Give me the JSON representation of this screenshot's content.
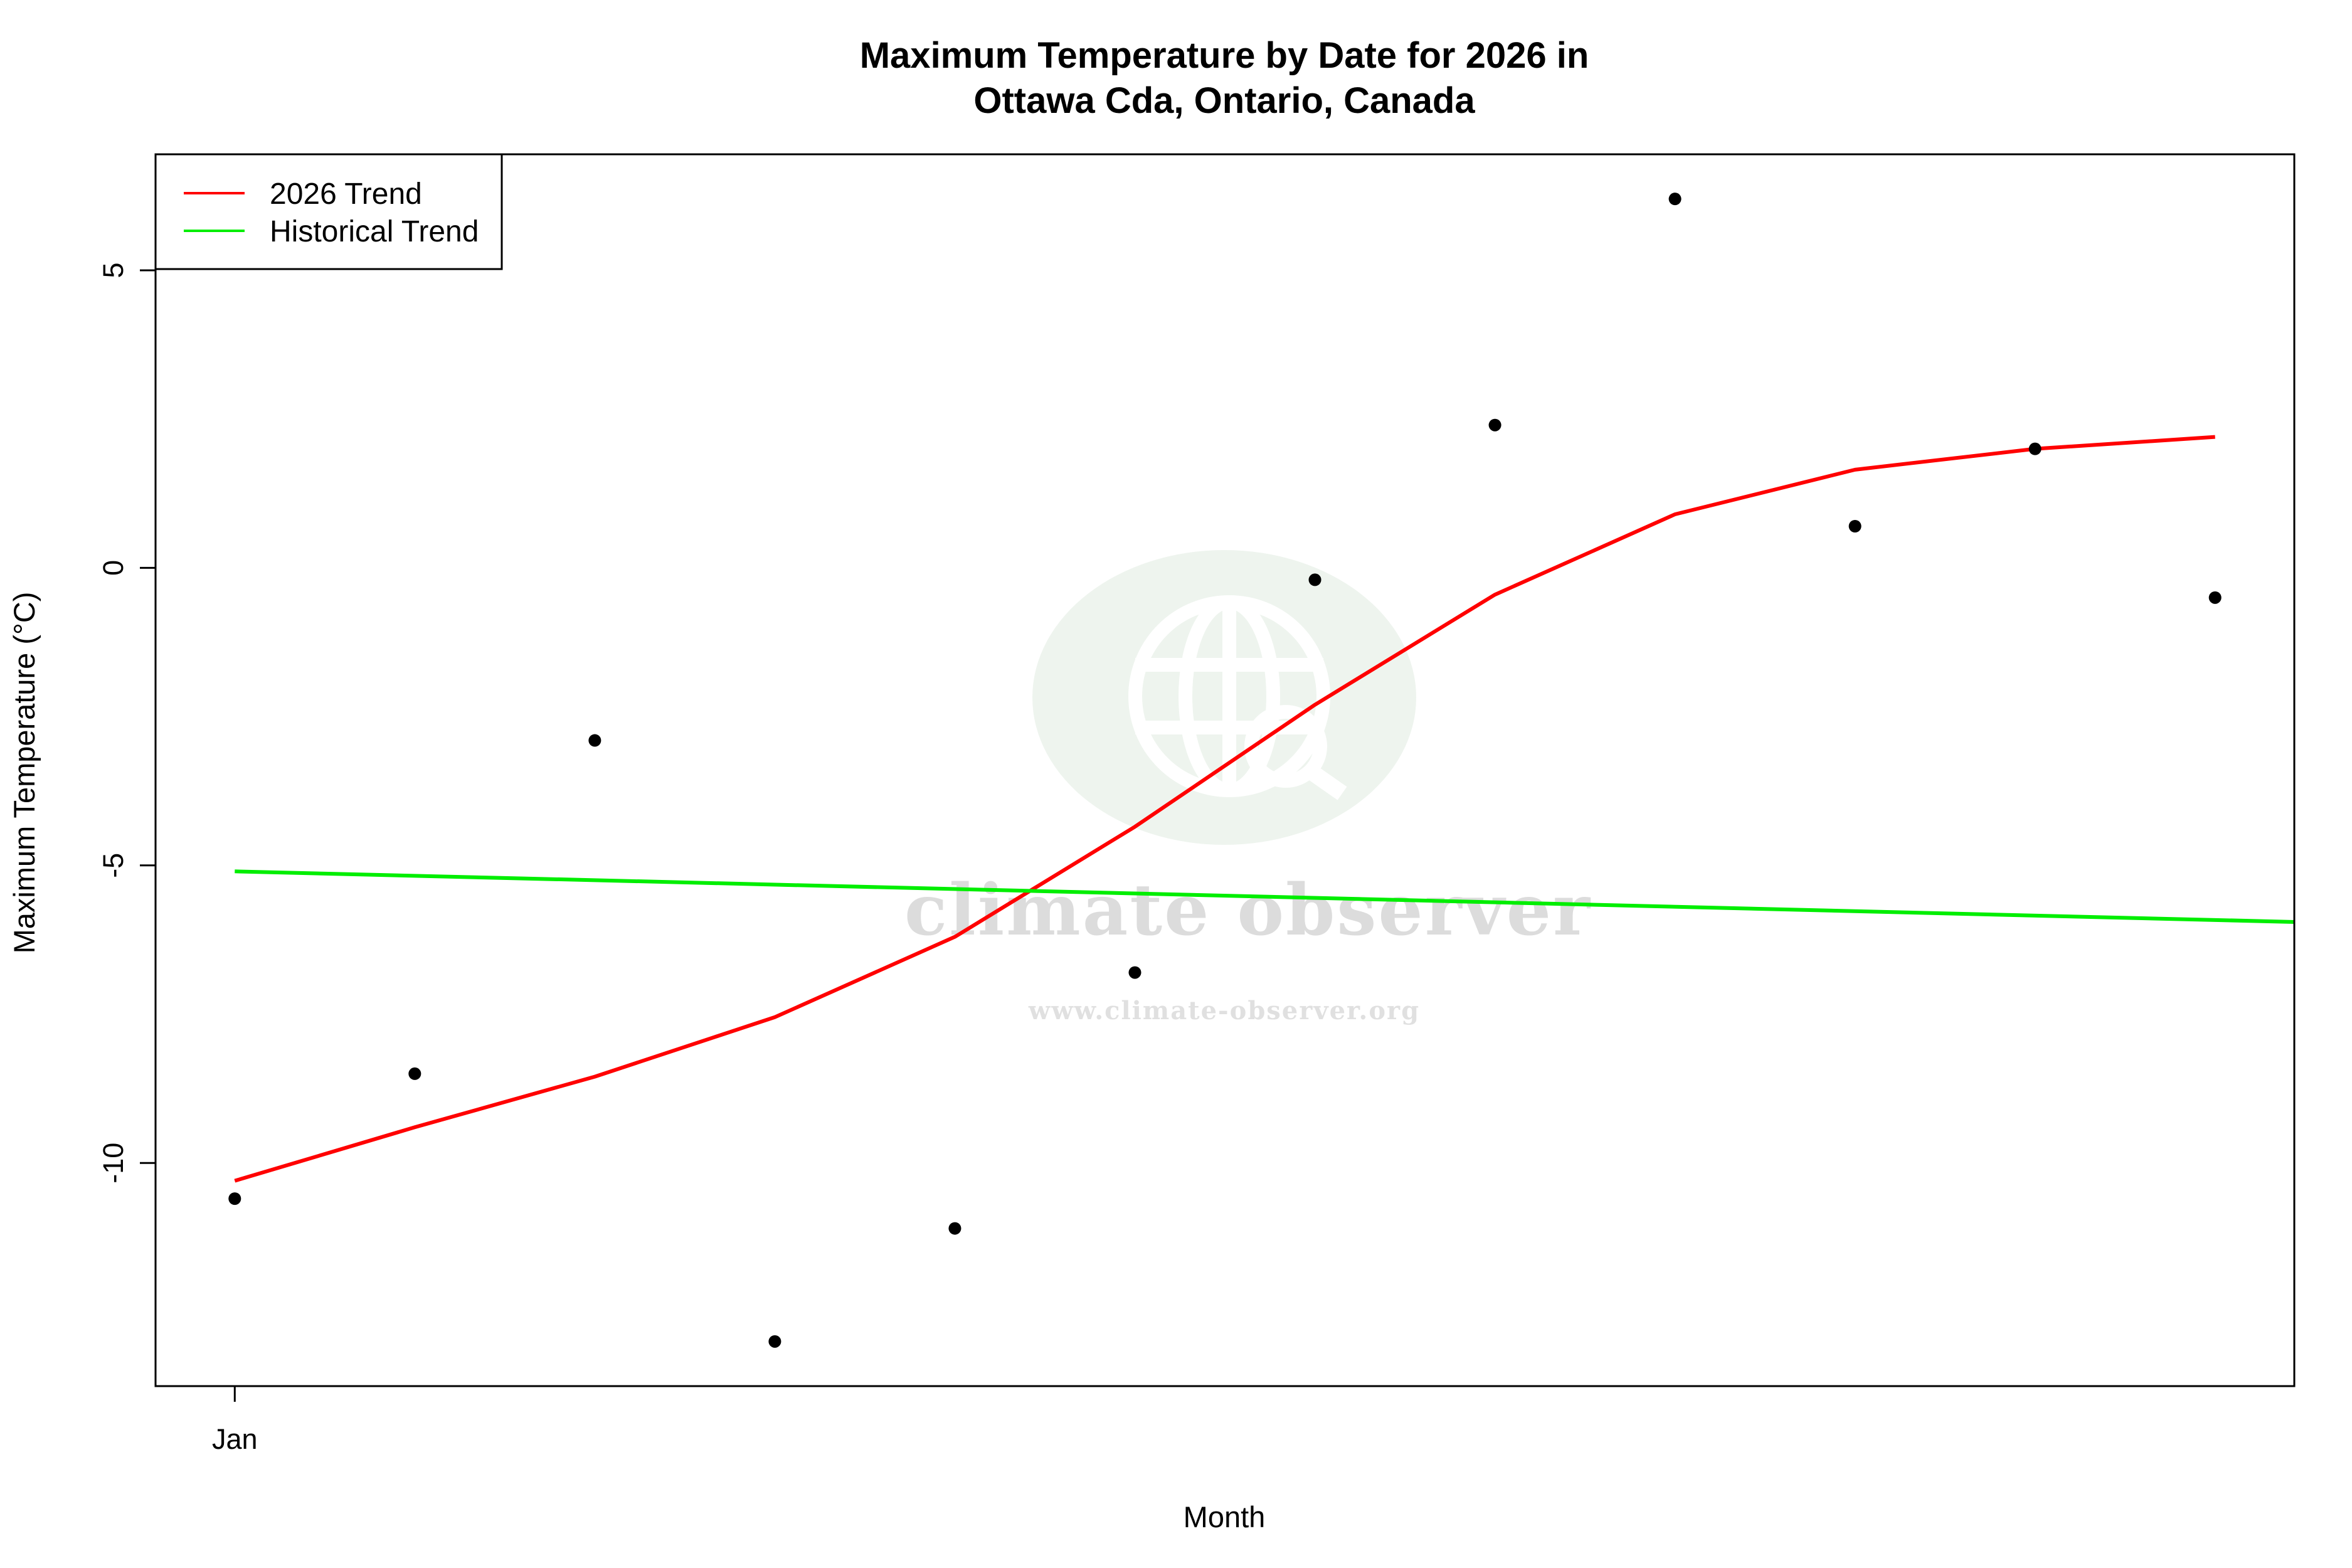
{
  "chart_data": {
    "type": "line",
    "title_line1": "Maximum Temperature by Date for 2026 in",
    "title_line2": "Ottawa Cda, Ontario, Canada",
    "xlabel": "Month",
    "ylabel": "Maximum Temperature (°C)",
    "x_tick_labels": [
      {
        "label": "Jan",
        "x": 1
      }
    ],
    "xlim": [
      0.56,
      12.44
    ],
    "ylim": [
      -13.75,
      6.95
    ],
    "y_ticks": [
      {
        "value": 5,
        "label": "5"
      },
      {
        "value": 0,
        "label": "0"
      },
      {
        "value": -5,
        "label": "-5"
      },
      {
        "value": -10,
        "label": "-10"
      }
    ],
    "points": {
      "x": [
        1,
        2,
        3,
        4,
        5,
        6,
        7,
        8,
        9,
        10,
        11,
        12
      ],
      "y": [
        -10.6,
        -8.5,
        -2.9,
        -13.0,
        -11.1,
        -6.8,
        -0.2,
        2.4,
        6.2,
        0.7,
        2.0,
        -0.5
      ],
      "color": "#000000"
    },
    "series": [
      {
        "name": "2026 Trend",
        "color": "#ff0000",
        "x": [
          1,
          2,
          3,
          4,
          5,
          6,
          7,
          8,
          9,
          10,
          11,
          12
        ],
        "y": [
          -10.3,
          -9.4,
          -8.55,
          -7.55,
          -6.2,
          -4.35,
          -2.3,
          -0.45,
          0.9,
          1.65,
          2.0,
          2.2
        ]
      },
      {
        "name": "Historical Trend",
        "color": "#00ee00",
        "x": [
          1,
          12.44
        ],
        "y": [
          -5.1,
          -5.95
        ]
      }
    ],
    "legend_position": "top-left",
    "grid": false
  },
  "watermark": {
    "name": "climate observer",
    "url": "www.climate-observer.org"
  }
}
